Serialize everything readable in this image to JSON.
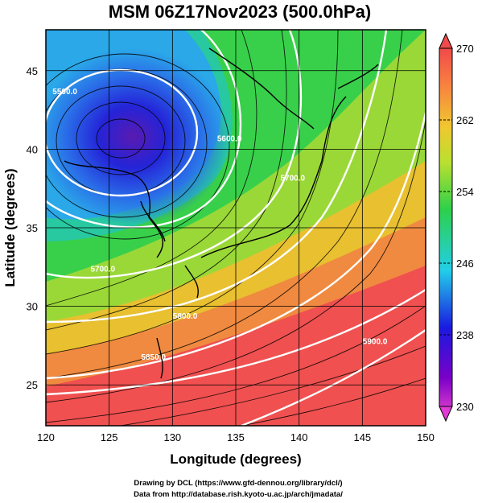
{
  "chart_data": {
    "type": "heatmap",
    "title": "MSM 06Z17Nov2023 (500.0hPa)",
    "xlabel": "Longitude (degrees)",
    "ylabel": "Latitude  (degrees)",
    "xlim": [
      120,
      150
    ],
    "ylim": [
      22.4,
      47.6
    ],
    "xticks": [
      "120",
      "125",
      "130",
      "135",
      "140",
      "145",
      "150"
    ],
    "yticks": [
      "25",
      "30",
      "35",
      "40",
      "45"
    ],
    "grid": true,
    "colorbar": {
      "range": [
        230,
        270
      ],
      "labels": [
        "270",
        "262",
        "254",
        "246",
        "238",
        "230"
      ],
      "position": "right"
    },
    "field": "temperature (K) with streamlines and geopotential height contours",
    "low_center": {
      "lon": 126,
      "lat": 41.5
    },
    "contours": [
      {
        "value": "5500.0",
        "label_lon": 121.5,
        "label_lat": 43.5
      },
      {
        "value": "5600.0",
        "label_lon": 134.5,
        "label_lat": 40.5
      },
      {
        "value": "5700.0",
        "label_lon": 139.5,
        "label_lat": 38
      },
      {
        "value": "5700.0",
        "label_lon": 124.5,
        "label_lat": 32.2
      },
      {
        "value": "5800.0",
        "label_lon": 131,
        "label_lat": 29.2
      },
      {
        "value": "5850.0",
        "label_lon": 128.5,
        "label_lat": 26.6
      },
      {
        "value": "5900.0",
        "label_lon": 146,
        "label_lat": 27.6
      }
    ]
  },
  "credits": {
    "line1": "Drawing by DCL (https://www.gfd-dennou.org/library/dcl/)",
    "line2": "Data from http://database.rish.kyoto-u.ac.jp/arch/jmadata/"
  }
}
